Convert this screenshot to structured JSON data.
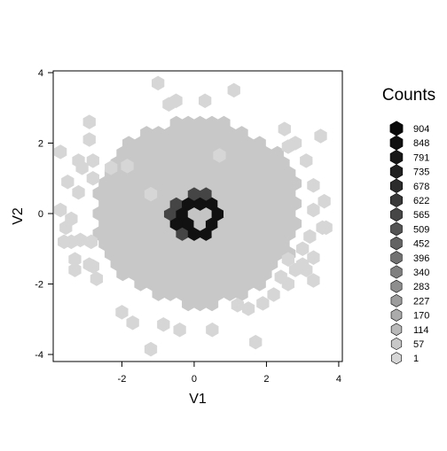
{
  "chart_data": {
    "type": "heatmap",
    "subtype": "hexbin",
    "xlabel": "V1",
    "ylabel": "V2",
    "xlim": [
      -3.9,
      4.1
    ],
    "ylim": [
      -4.2,
      4.05
    ],
    "x_ticks": [
      -2,
      0,
      2,
      4
    ],
    "y_ticks": [
      -4,
      -2,
      0,
      2,
      4
    ],
    "x_tick_labels": [
      "-2",
      "0",
      "2",
      "4"
    ],
    "y_tick_labels": [
      "-4",
      "-2",
      "0",
      "2",
      "4"
    ],
    "legend": {
      "title": "Counts",
      "position": "right",
      "levels": [
        1,
        57,
        114,
        170,
        227,
        283,
        340,
        396,
        452,
        509,
        565,
        622,
        678,
        735,
        791,
        848,
        904
      ],
      "labels": [
        "1",
        "57",
        "114",
        "170",
        "227",
        "283",
        "340",
        "396",
        "452",
        "509",
        "565",
        "622",
        "678",
        "735",
        "791",
        "848",
        "904"
      ],
      "colors": [
        "#d6d6d6",
        "#c8c8c8",
        "#b9b9b9",
        "#ababab",
        "#9c9c9c",
        "#8e8e8e",
        "#7f7f7f",
        "#717171",
        "#636363",
        "#545454",
        "#464646",
        "#383838",
        "#2b2b2b",
        "#202020",
        "#171717",
        "#101010",
        "#0a0a0a"
      ]
    },
    "fill_colors": {
      "bulk": "#c8c8c8",
      "sparse": "#d6d6d6",
      "ring": "#111111",
      "ring_edge": "#454545",
      "hole": "#c4c4c4"
    },
    "hex_radius": 0.19,
    "core": {
      "center": [
        0.1,
        0.05
      ],
      "rx": 2.85,
      "ry": 2.65
    },
    "ring": {
      "center": [
        0.05,
        -0.05
      ],
      "inner_radius": 0.3,
      "outer_radius": 0.72
    },
    "bright_hexes": [
      [
        -2.85,
        -0.8
      ],
      [
        -2.3,
        1.3
      ],
      [
        -1.85,
        1.35
      ],
      [
        0.7,
        1.65
      ],
      [
        -1.2,
        0.55
      ],
      [
        -2.8,
        1.0
      ]
    ],
    "outlier_hexes": [
      [
        -1.0,
        3.7
      ],
      [
        1.1,
        3.5
      ],
      [
        0.3,
        3.2
      ],
      [
        -0.5,
        3.2
      ],
      [
        -0.7,
        3.1
      ],
      [
        -2.9,
        2.6
      ],
      [
        -2.9,
        2.1
      ],
      [
        -3.7,
        1.75
      ],
      [
        -3.2,
        1.5
      ],
      [
        -3.1,
        1.3
      ],
      [
        -2.8,
        1.5
      ],
      [
        -3.5,
        0.9
      ],
      [
        -3.2,
        0.6
      ],
      [
        -3.7,
        0.1
      ],
      [
        -3.4,
        -0.15
      ],
      [
        -3.55,
        -0.4
      ],
      [
        -3.6,
        -0.8
      ],
      [
        -3.4,
        -0.8
      ],
      [
        -3.15,
        -0.75
      ],
      [
        -3.3,
        -1.3
      ],
      [
        -2.8,
        -1.5
      ],
      [
        -2.7,
        -1.85
      ],
      [
        -2.9,
        -1.45
      ],
      [
        -3.3,
        -1.6
      ],
      [
        3.5,
        2.2
      ],
      [
        3.1,
        1.5
      ],
      [
        2.5,
        2.4
      ],
      [
        2.6,
        1.9
      ],
      [
        2.8,
        2.0
      ],
      [
        3.3,
        0.8
      ],
      [
        3.6,
        0.35
      ],
      [
        3.3,
        0.1
      ],
      [
        3.55,
        -0.4
      ],
      [
        3.65,
        -0.4
      ],
      [
        3.2,
        -0.65
      ],
      [
        3.0,
        -1.0
      ],
      [
        3.3,
        -1.25
      ],
      [
        2.6,
        -1.3
      ],
      [
        3.0,
        -1.45
      ],
      [
        2.8,
        -1.6
      ],
      [
        2.4,
        -1.8
      ],
      [
        2.6,
        -2.0
      ],
      [
        3.3,
        -1.9
      ],
      [
        3.1,
        -1.6
      ],
      [
        2.2,
        -2.3
      ],
      [
        1.9,
        -2.55
      ],
      [
        1.5,
        -2.7
      ],
      [
        1.2,
        -2.6
      ],
      [
        -2.0,
        -2.8
      ],
      [
        -1.7,
        -3.1
      ],
      [
        -0.85,
        -3.15
      ],
      [
        -0.4,
        -3.3
      ],
      [
        0.5,
        -3.3
      ],
      [
        -1.2,
        -3.85
      ],
      [
        1.7,
        -3.65
      ]
    ]
  }
}
